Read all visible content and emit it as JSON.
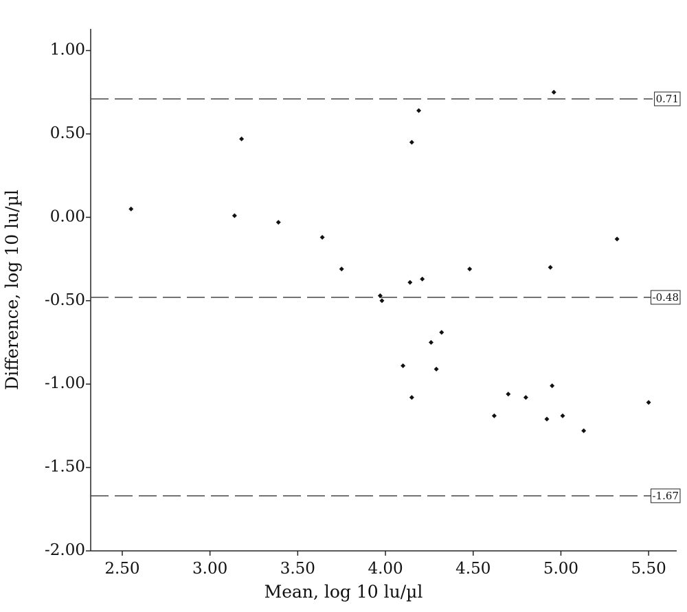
{
  "chart_data": {
    "type": "scatter",
    "x_label": "Mean, log 10 lu/µl",
    "y_label": "Difference, log 10 lu/µl",
    "x": [
      2.55,
      3.14,
      3.18,
      3.39,
      3.64,
      3.75,
      3.97,
      3.98,
      4.14,
      4.21,
      4.15,
      4.19,
      4.1,
      4.15,
      4.26,
      4.32,
      4.29,
      4.48,
      4.62,
      4.7,
      4.8,
      4.94,
      4.96,
      4.95,
      4.92,
      5.01,
      5.13,
      5.32,
      5.5
    ],
    "values": [
      0.05,
      0.01,
      0.47,
      -0.03,
      -0.12,
      -0.31,
      -0.47,
      -0.5,
      -0.39,
      -0.37,
      0.45,
      0.64,
      -0.89,
      -1.08,
      -0.75,
      -0.69,
      -0.91,
      -0.31,
      -1.19,
      -1.06,
      -1.08,
      -0.3,
      0.75,
      -1.01,
      -1.21,
      -1.19,
      -1.28,
      -0.13,
      -1.11
    ],
    "color": "#111111",
    "xlim": [
      2.32,
      5.66
    ],
    "ylim": [
      -2.0,
      1.13
    ],
    "xticks": [
      {
        "value": 2.5,
        "label": "2.50"
      },
      {
        "value": 3,
        "label": "3.00"
      },
      {
        "value": 3.5,
        "label": "3.50"
      },
      {
        "value": 4,
        "label": "4.00"
      },
      {
        "value": 4.5,
        "label": "4.50"
      },
      {
        "value": 5,
        "label": "5.00"
      },
      {
        "value": 5.5,
        "label": "5.50"
      }
    ],
    "yticks": [
      {
        "value": 1,
        "label": "1.00"
      },
      {
        "value": 0.5,
        "label": "0.50"
      },
      {
        "value": 0,
        "label": "0.00"
      },
      {
        "value": -0.5,
        "label": "-0.50"
      },
      {
        "value": -1,
        "label": "-1.00"
      },
      {
        "value": -1.5,
        "label": "-1.50"
      },
      {
        "value": -2,
        "label": "-2.00"
      }
    ],
    "reference_lines": [
      0.71,
      -0.48,
      -1.67
    ]
  }
}
